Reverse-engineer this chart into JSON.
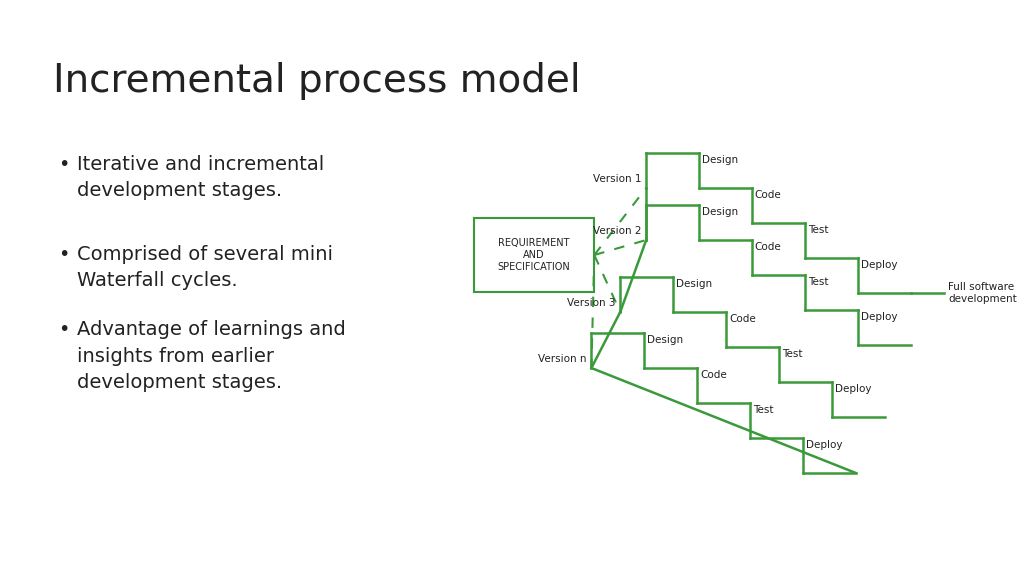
{
  "title": "Incremental process model",
  "bullet_points": [
    "Iterative and incremental\ndevelopment stages.",
    "Comprised of several mini\nWaterfall cycles.",
    "Advantage of learnings and\ninsights from earlier\ndevelopment stages."
  ],
  "green": "#3a9a3a",
  "bg_color": "#ffffff",
  "text_color": "#222222",
  "box_text": "REQUIREMENT\nAND\nSPECIFICATION",
  "versions": [
    "Version 1",
    "Version 2",
    "Version 3",
    "Version n"
  ],
  "stages": [
    "Design",
    "Code",
    "Test",
    "Deploy"
  ],
  "full_label": "Full software\ndevelopment",
  "title_fontsize": 28,
  "bullet_fontsize": 14,
  "diagram_fontsize": 7.5
}
